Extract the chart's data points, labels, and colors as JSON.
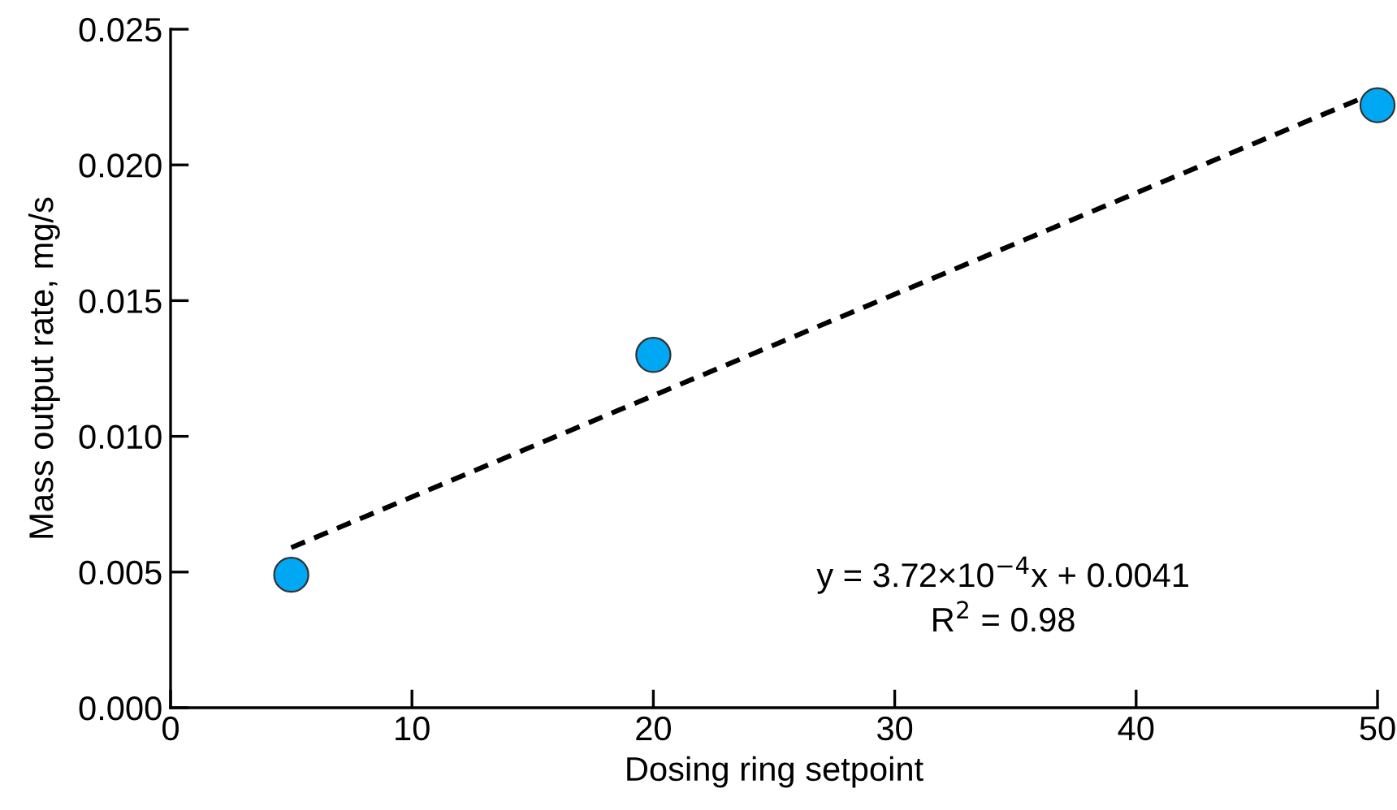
{
  "chart_data": {
    "type": "scatter",
    "xlabel": "Dosing ring setpoint",
    "ylabel": "Mass output rate, mg/s",
    "xlim": [
      0,
      50
    ],
    "xticks": [
      0,
      10,
      20,
      30,
      40,
      50
    ],
    "ylim": [
      0,
      0.025
    ],
    "yticks": [
      {
        "value": 0,
        "label": "0.000"
      },
      {
        "value": 0.005,
        "label": "0.005"
      },
      {
        "value": 0.01,
        "label": "0.010"
      },
      {
        "value": 0.015,
        "label": "0.015"
      },
      {
        "value": 0.02,
        "label": "0.020"
      },
      {
        "value": 0.025,
        "label": "0.025"
      }
    ],
    "grid": false,
    "legend": false,
    "marker": "circle",
    "series": [
      {
        "color": "#00a8f3",
        "x": [
          5,
          20,
          50
        ],
        "values": [
          0.0049,
          0.013,
          0.0222
        ]
      },
      {
        "type": "line",
        "color": "#000000",
        "line_style": "dashed",
        "marker": "none",
        "x": [
          5,
          50
        ],
        "values": [
          0.0059,
          0.0227
        ]
      }
    ],
    "annotations": [
      "y = 3.72×10$^{−4}$x + 0.0041",
      "R$^{2}$ = 0.98"
    ]
  }
}
